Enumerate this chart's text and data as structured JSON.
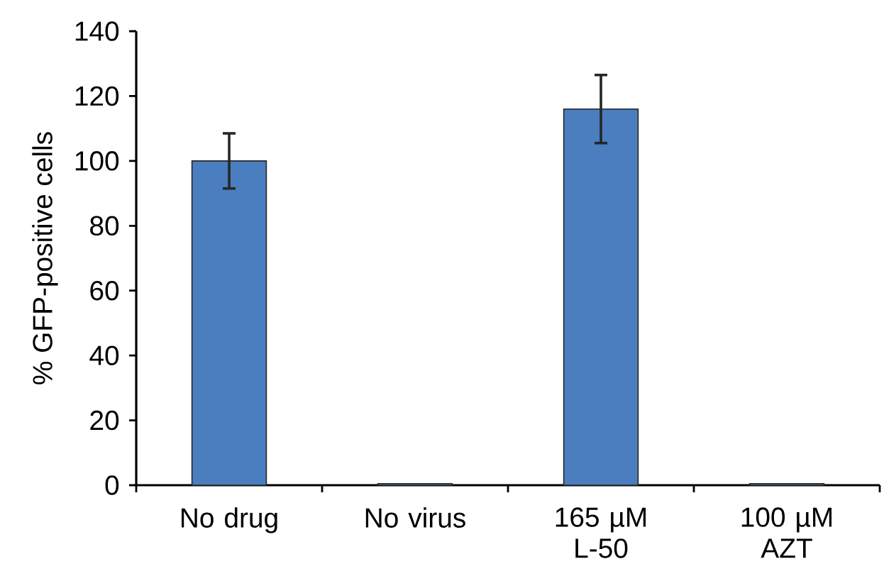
{
  "chart_data": {
    "type": "bar",
    "ylabel": "% GFP-positive  cells",
    "categories": [
      "No drug",
      "No virus",
      "165 µM L-50",
      "100 µM AZT"
    ],
    "values": [
      100,
      0.5,
      116,
      0.5
    ],
    "errors": [
      8.5,
      null,
      10.5,
      null
    ],
    "color": "#4a7ebf",
    "ylim": [
      0,
      140
    ],
    "yticks": [
      0,
      20,
      40,
      60,
      80,
      100,
      120,
      140
    ],
    "grid": false
  }
}
